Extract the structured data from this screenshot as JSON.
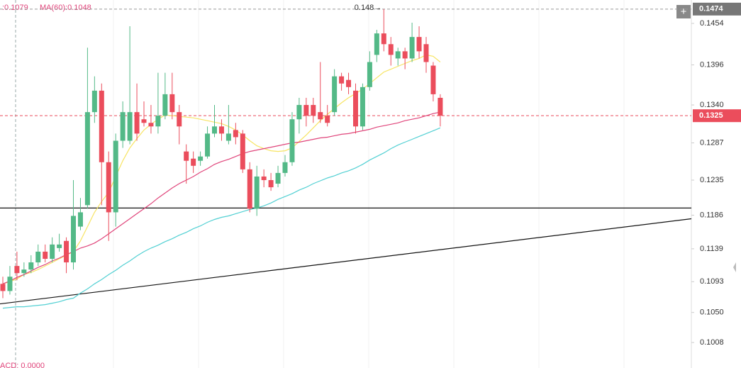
{
  "chart_data": {
    "type": "candlestick",
    "indicator_texts": [
      ":0.1079",
      "MA(60):0.1048",
      "ACD: 0.0000"
    ],
    "open": [
      0.109,
      0.108,
      0.1115,
      0.1105,
      0.111,
      0.112,
      0.1135,
      0.1125,
      0.114,
      0.115,
      0.112,
      0.117,
      0.12,
      0.133,
      0.136,
      0.126,
      0.119,
      0.129,
      0.129,
      0.133,
      0.132,
      0.1315,
      0.131,
      0.1325,
      0.1355,
      0.133,
      0.1275,
      0.1265,
      0.1262,
      0.1268,
      0.13,
      0.131,
      0.129,
      0.1305,
      0.13,
      0.125,
      0.1195,
      0.124,
      0.1235,
      0.123,
      0.1245,
      0.126,
      0.132,
      0.134,
      0.134,
      0.133,
      0.1325,
      0.133,
      0.138,
      0.1375,
      0.136,
      0.131,
      0.1365,
      0.141,
      0.144,
      0.1425,
      0.1405,
      0.1415,
      0.1405,
      0.1435,
      0.1425,
      0.1395,
      0.135
    ],
    "high": [
      0.11,
      0.1115,
      0.1135,
      0.112,
      0.113,
      0.1145,
      0.1145,
      0.1155,
      0.116,
      0.1155,
      0.1235,
      0.121,
      0.142,
      0.138,
      0.137,
      0.1275,
      0.13,
      0.1345,
      0.145,
      0.137,
      0.1345,
      0.134,
      0.1385,
      0.1385,
      0.1385,
      0.134,
      0.1285,
      0.1275,
      0.1275,
      0.131,
      0.134,
      0.132,
      0.134,
      0.1315,
      0.1305,
      0.126,
      0.1255,
      0.125,
      0.1245,
      0.1255,
      0.127,
      0.133,
      0.135,
      0.135,
      0.135,
      0.14,
      0.134,
      0.139,
      0.1385,
      0.1385,
      0.137,
      0.137,
      0.1415,
      0.1445,
      0.1474,
      0.1435,
      0.142,
      0.142,
      0.1455,
      0.145,
      0.1435,
      0.14,
      0.1355
    ],
    "low": [
      0.107,
      0.1075,
      0.1095,
      0.11,
      0.1105,
      0.1115,
      0.112,
      0.112,
      0.1135,
      0.1105,
      0.111,
      0.1165,
      0.1195,
      0.1315,
      0.12,
      0.115,
      0.117,
      0.128,
      0.1285,
      0.129,
      0.131,
      0.13,
      0.13,
      0.132,
      0.132,
      0.1285,
      0.123,
      0.1245,
      0.1255,
      0.1265,
      0.1295,
      0.129,
      0.1285,
      0.1285,
      0.1245,
      0.119,
      0.1185,
      0.1225,
      0.122,
      0.1225,
      0.124,
      0.1255,
      0.13,
      0.131,
      0.1315,
      0.1315,
      0.131,
      0.1325,
      0.136,
      0.1355,
      0.13,
      0.1305,
      0.136,
      0.14,
      0.1415,
      0.1395,
      0.1395,
      0.139,
      0.14,
      0.1405,
      0.1385,
      0.1345,
      0.131
    ],
    "close": [
      0.108,
      0.11,
      0.1105,
      0.111,
      0.112,
      0.1135,
      0.1125,
      0.1145,
      0.1145,
      0.112,
      0.1185,
      0.119,
      0.133,
      0.136,
      0.126,
      0.119,
      0.129,
      0.133,
      0.133,
      0.13,
      0.1315,
      0.131,
      0.1325,
      0.1355,
      0.133,
      0.131,
      0.1262,
      0.1255,
      0.1268,
      0.13,
      0.131,
      0.13,
      0.13,
      0.1295,
      0.125,
      0.1195,
      0.124,
      0.1235,
      0.1225,
      0.1245,
      0.126,
      0.132,
      0.134,
      0.1325,
      0.1325,
      0.132,
      0.1315,
      0.138,
      0.137,
      0.1365,
      0.131,
      0.1365,
      0.14,
      0.144,
      0.1425,
      0.141,
      0.1415,
      0.1405,
      0.1435,
      0.1415,
      0.14,
      0.1355,
      0.1325
    ],
    "up_color": "#53b987",
    "down_color": "#eb4d5c",
    "series": [
      {
        "color": "#f7e463",
        "values": [
          0.109,
          0.1093,
          0.1097,
          0.1103,
          0.1106,
          0.111,
          0.1115,
          0.112,
          0.1125,
          0.113,
          0.1135,
          0.115,
          0.117,
          0.119,
          0.1205,
          0.1218,
          0.124,
          0.1262,
          0.128,
          0.1293,
          0.1305,
          0.1313,
          0.132,
          0.1326,
          0.1325,
          0.1324,
          0.1323,
          0.1322,
          0.132,
          0.1318,
          0.1316,
          0.1314,
          0.131,
          0.1305,
          0.1298,
          0.129,
          0.1283,
          0.1279,
          0.1276,
          0.1275,
          0.1276,
          0.128,
          0.1289,
          0.1298,
          0.1308,
          0.1318,
          0.1327,
          0.1335,
          0.1343,
          0.135,
          0.1356,
          0.1362,
          0.137,
          0.1378,
          0.1386,
          0.139,
          0.1394,
          0.1398,
          0.1402,
          0.1405,
          0.141,
          0.1408,
          0.14
        ]
      },
      {
        "color": "#e0457b",
        "values": [
          0.109,
          0.1094,
          0.1099,
          0.1103,
          0.1108,
          0.1113,
          0.1117,
          0.1122,
          0.1126,
          0.1131,
          0.1135,
          0.114,
          0.1143,
          0.1147,
          0.1153,
          0.116,
          0.1167,
          0.1174,
          0.1181,
          0.1188,
          0.1195,
          0.1202,
          0.121,
          0.1217,
          0.1224,
          0.123,
          0.1235,
          0.124,
          0.1246,
          0.1251,
          0.1257,
          0.1261,
          0.1264,
          0.1268,
          0.1272,
          0.1275,
          0.1277,
          0.1279,
          0.1281,
          0.1283,
          0.1285,
          0.1287,
          0.1288,
          0.129,
          0.1292,
          0.1294,
          0.1295,
          0.1297,
          0.1299,
          0.13,
          0.1302,
          0.1304,
          0.1306,
          0.1309,
          0.1311,
          0.1313,
          0.1315,
          0.1318,
          0.132,
          0.1322,
          0.1325,
          0.1328,
          0.133
        ]
      },
      {
        "color": "#52d0d3",
        "values": [
          0.1056,
          0.1057,
          0.1058,
          0.1058,
          0.1059,
          0.106,
          0.1061,
          0.1063,
          0.1065,
          0.1068,
          0.107,
          0.1077,
          0.1083,
          0.109,
          0.1096,
          0.1103,
          0.1109,
          0.1116,
          0.1122,
          0.1129,
          0.1135,
          0.114,
          0.1144,
          0.1149,
          0.1153,
          0.1158,
          0.1162,
          0.1167,
          0.1171,
          0.1176,
          0.118,
          0.1183,
          0.1185,
          0.1188,
          0.1191,
          0.1194,
          0.1196,
          0.1199,
          0.1203,
          0.1208,
          0.1212,
          0.1216,
          0.1221,
          0.1225,
          0.123,
          0.1234,
          0.1238,
          0.1241,
          0.1245,
          0.1248,
          0.1252,
          0.1257,
          0.1263,
          0.1268,
          0.1273,
          0.1279,
          0.1284,
          0.1288,
          0.1292,
          0.1296,
          0.13,
          0.1304,
          0.1308
        ]
      }
    ],
    "trend_lines": [
      [
        0.1196,
        0.1196
      ],
      [
        0.1062,
        0.1181
      ]
    ],
    "max_marker": 0.148,
    "high_price": 0.1474,
    "last_price": 0.1325,
    "ylim": [
      0.09724,
      0.14867
    ],
    "yticks": [
      0.1454,
      0.1396,
      {
        "value": 0.134,
        "label": "0.1340"
      },
      0.1287,
      0.1235,
      0.1186,
      0.1139,
      0.1093,
      {
        "value": 0.105,
        "label": "0.1050"
      },
      0.1008
    ]
  }
}
